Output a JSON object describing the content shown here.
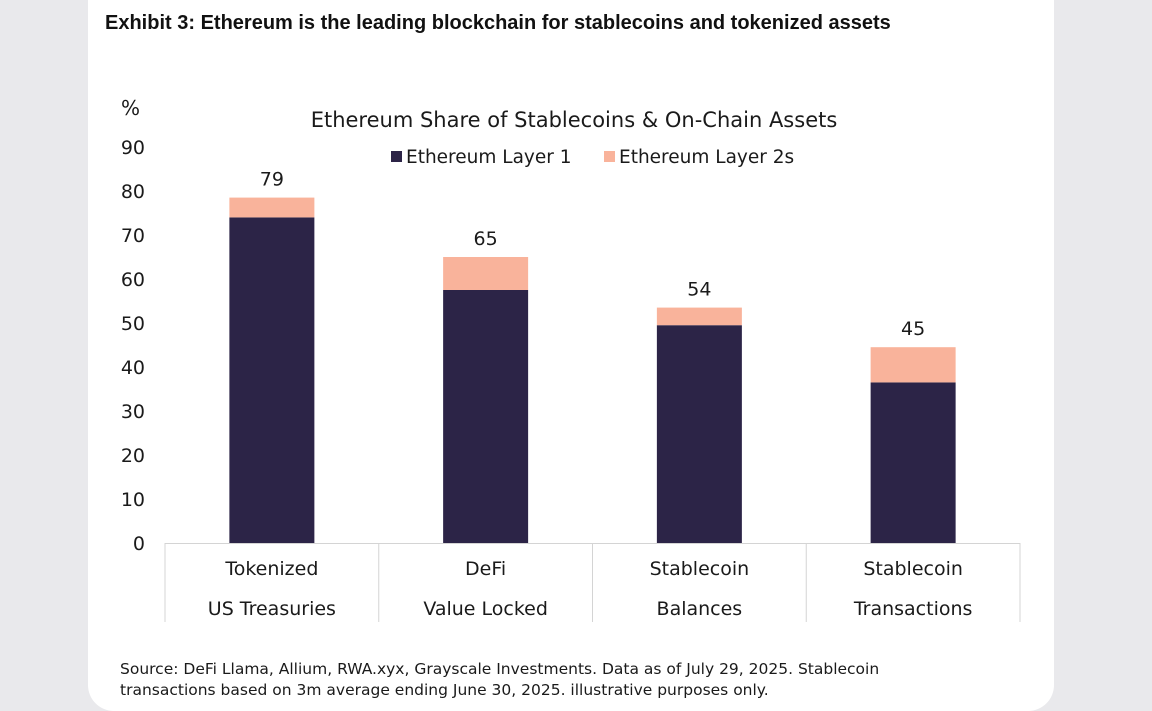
{
  "exhibit_title": "Exhibit 3: Ethereum is the leading blockchain for stablecoins and tokenized assets",
  "source_note": {
    "line1": "Source: DeFi Llama, Allium, RWA.xyx, Grayscale Investments. Data as of July 29, 2025. Stablecoin",
    "line2": "transactions based on 3m average ending June 30, 2025. illustrative purposes only."
  },
  "chart_data": {
    "type": "bar",
    "stacked": true,
    "title": "Ethereum Share of Stablecoins & On-Chain Assets",
    "ylabel": "%",
    "xlabel": "",
    "ylim": [
      0,
      90
    ],
    "yticks": [
      0,
      10,
      20,
      30,
      40,
      50,
      60,
      70,
      80,
      90
    ],
    "grid": false,
    "legend_position": "top",
    "categories": [
      [
        "Tokenized",
        "US Treasuries"
      ],
      [
        "DeFi",
        "Value Locked"
      ],
      [
        "Stablecoin",
        "Balances"
      ],
      [
        "Stablecoin",
        "Transactions"
      ]
    ],
    "series": [
      {
        "name": "Ethereum Layer 1",
        "color": "#2c2447",
        "values": [
          74,
          57.5,
          49.5,
          36.5
        ]
      },
      {
        "name": "Ethereum Layer 2s",
        "color": "#f9b39b",
        "values": [
          4.5,
          7.5,
          4,
          8
        ]
      }
    ],
    "totals": [
      79,
      65,
      54,
      45
    ]
  }
}
